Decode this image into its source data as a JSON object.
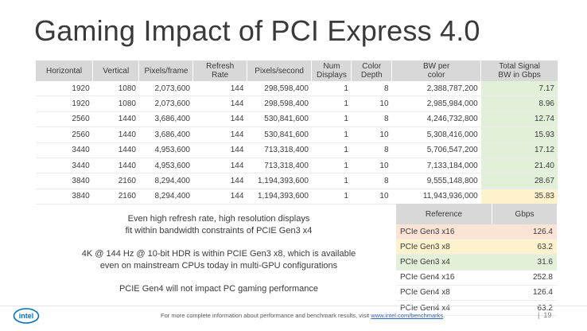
{
  "title": "Gaming Impact of PCI Express 4.0",
  "main_table": {
    "headers": [
      "Horizontal",
      "Vertical",
      "Pixels/frame",
      "Refresh\nRate",
      "Pixels/second",
      "Num\nDisplays",
      "Color\nDepth",
      "BW per\ncolor",
      "Total Signal\nBW in Gbps"
    ],
    "rows": [
      [
        "1920",
        "1080",
        "2,073,600",
        "144",
        "298,598,400",
        "1",
        "8",
        "2,388,787,200",
        "7.17"
      ],
      [
        "1920",
        "1080",
        "2,073,600",
        "144",
        "298,598,400",
        "1",
        "10",
        "2,985,984,000",
        "8.96"
      ],
      [
        "2560",
        "1440",
        "3,686,400",
        "144",
        "530,841,600",
        "1",
        "8",
        "4,246,732,800",
        "12.74"
      ],
      [
        "2560",
        "1440",
        "3,686,400",
        "144",
        "530,841,600",
        "1",
        "10",
        "5,308,416,000",
        "15.93"
      ],
      [
        "3440",
        "1440",
        "4,953,600",
        "144",
        "713,318,400",
        "1",
        "8",
        "5,706,547,200",
        "17.12"
      ],
      [
        "3440",
        "1440",
        "4,953,600",
        "144",
        "713,318,400",
        "1",
        "10",
        "7,133,184,000",
        "21.40"
      ],
      [
        "3840",
        "2160",
        "8,294,400",
        "144",
        "1,194,393,600",
        "1",
        "8",
        "9,555,148,800",
        "28.67"
      ],
      [
        "3840",
        "2160",
        "8,294,400",
        "144",
        "1,194,393,600",
        "1",
        "10",
        "11,943,936,000",
        "35.83"
      ]
    ],
    "last_col_highlight": [
      "green",
      "green",
      "green",
      "green",
      "green",
      "green",
      "green",
      "yellow"
    ]
  },
  "notes": [
    "Even high refresh rate, high resolution displays\nfit within bandwidth constraints of PCIE Gen3 x4",
    "4K @ 144 Hz @ 10-bit HDR is within PCIE Gen3 x8, which is available\neven on mainstream CPUs today in multi-GPU configurations",
    "PCIE Gen4 will not impact PC gaming performance"
  ],
  "ref_table": {
    "headers": [
      "Reference",
      "Gbps"
    ],
    "rows": [
      {
        "name": "PCIe Gen3 x16",
        "value": "126.4",
        "highlight": "red"
      },
      {
        "name": "PCIe Gen3 x8",
        "value": "63.2",
        "highlight": "yellow"
      },
      {
        "name": "PCIe Gen3 x4",
        "value": "31.6",
        "highlight": "green"
      },
      {
        "name": "PCIe Gen4 x16",
        "value": "252.8",
        "highlight": "none"
      },
      {
        "name": "PCIe Gen4 x8",
        "value": "126.4",
        "highlight": "none"
      },
      {
        "name": "PCIe Gen4 x4",
        "value": "63.2",
        "highlight": "none"
      }
    ]
  },
  "footer": {
    "text": "For more complete information about performance and benchmark results, visit ",
    "link": "www.intel.com/benchmarks",
    "suffix": ".",
    "page_number": "19",
    "logo_text": "intel"
  },
  "colors": {
    "header_bg": "#d8d8d8",
    "green": "#e2efd9",
    "yellow": "#fdf2cc",
    "red": "#fbe4d6",
    "intel_blue": "#0071c5"
  }
}
